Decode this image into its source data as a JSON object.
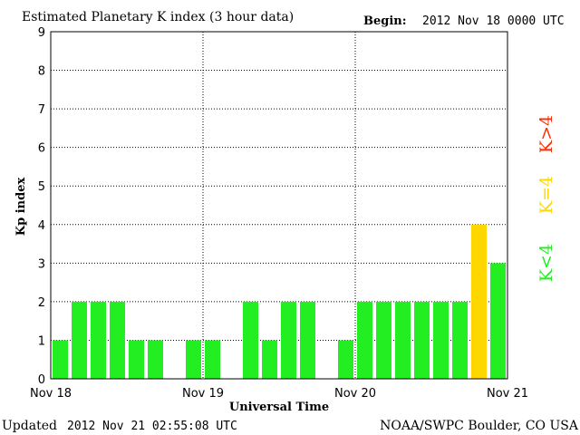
{
  "header": {
    "title": "Estimated Planetary K index (3 hour data)",
    "begin_label": "Begin:",
    "begin_value": "2012 Nov 18 0000 UTC"
  },
  "footer": {
    "updated_label": "Updated",
    "updated_value": "2012 Nov 21 02:55:08 UTC",
    "source": "NOAA/SWPC Boulder, CO USA"
  },
  "legend": {
    "above": {
      "label": "K>4",
      "color": "#ff2a00"
    },
    "equal": {
      "label": "K=4",
      "color": "#ffd700"
    },
    "below": {
      "label": "K<4",
      "color": "#22ee22"
    }
  },
  "chart_data": {
    "type": "bar",
    "title": "Estimated Planetary K index (3 hour data)",
    "xlabel": "Universal Time",
    "ylabel": "Kp index",
    "ylim": [
      0,
      9
    ],
    "yticks": [
      0,
      1,
      2,
      3,
      4,
      5,
      6,
      7,
      8,
      9
    ],
    "x_tick_labels": [
      "Nov 18",
      "Nov 19",
      "Nov 20",
      "Nov 21"
    ],
    "interval_hours": 3,
    "grid": true,
    "values": [
      1,
      2,
      2,
      2,
      1,
      1,
      0,
      1,
      1,
      0,
      2,
      1,
      2,
      2,
      0,
      1,
      2,
      2,
      2,
      2,
      2,
      2,
      4,
      3
    ],
    "colors": {
      "below_4": "#22ee22",
      "equal_4": "#ffd700",
      "above_4": "#ff2a00"
    }
  }
}
